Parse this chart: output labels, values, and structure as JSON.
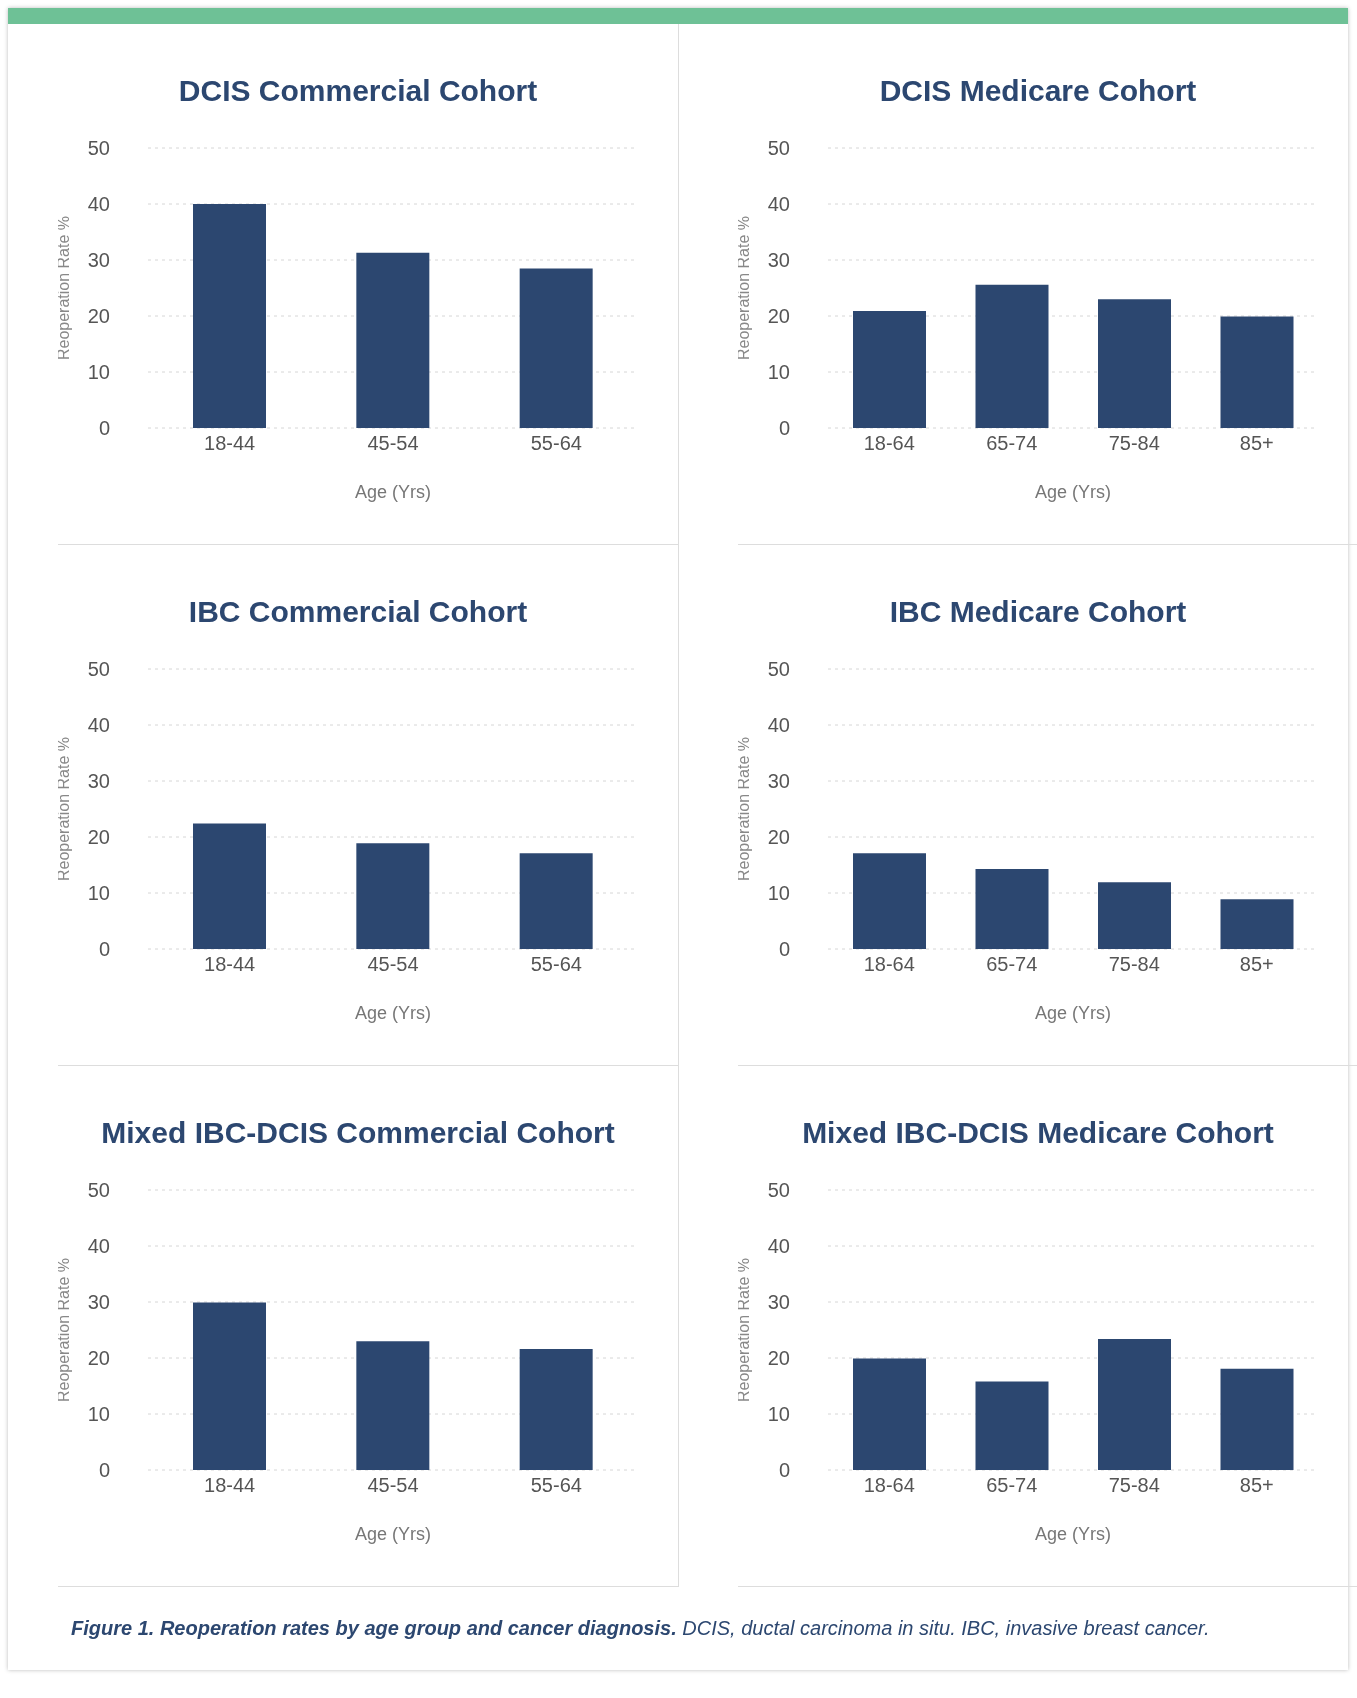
{
  "chart_data": [
    {
      "type": "bar",
      "title": "DCIS Commercial Cohort",
      "xlabel": "Age (Yrs)",
      "ylabel": "Reoperation Rate %",
      "categories": [
        "18-44",
        "45-54",
        "55-64"
      ],
      "values": [
        40.0,
        31.3,
        28.5
      ],
      "color": "#2c4770",
      "ylim": [
        0,
        50
      ],
      "yticks": [
        0,
        10,
        20,
        30,
        40,
        50
      ],
      "grid": "y"
    },
    {
      "type": "bar",
      "title": "DCIS Medicare Cohort",
      "xlabel": "Age (Yrs)",
      "ylabel": "Reoperation Rate %",
      "categories": [
        "18-64",
        "65-74",
        "75-84",
        "85+"
      ],
      "values": [
        20.9,
        25.6,
        23.0,
        19.9
      ],
      "color": "#2c4770",
      "ylim": [
        0,
        50
      ],
      "yticks": [
        0,
        10,
        20,
        30,
        40,
        50
      ],
      "grid": "y"
    },
    {
      "type": "bar",
      "title": "IBC Commercial Cohort",
      "xlabel": "Age (Yrs)",
      "ylabel": "Reoperation Rate %",
      "categories": [
        "18-44",
        "45-54",
        "55-64"
      ],
      "values": [
        22.4,
        18.9,
        17.1
      ],
      "color": "#2c4770",
      "ylim": [
        0,
        50
      ],
      "yticks": [
        0,
        10,
        20,
        30,
        40,
        50
      ],
      "grid": "y"
    },
    {
      "type": "bar",
      "title": "IBC Medicare Cohort",
      "xlabel": "Age (Yrs)",
      "ylabel": "Reoperation Rate %",
      "categories": [
        "18-64",
        "65-74",
        "75-84",
        "85+"
      ],
      "values": [
        17.1,
        14.3,
        11.9,
        8.9
      ],
      "color": "#2c4770",
      "ylim": [
        0,
        50
      ],
      "yticks": [
        0,
        10,
        20,
        30,
        40,
        50
      ],
      "grid": "y"
    },
    {
      "type": "bar",
      "title": "Mixed IBC-DCIS Commercial Cohort",
      "xlabel": "Age (Yrs)",
      "ylabel": "Reoperation Rate %",
      "categories": [
        "18-44",
        "45-54",
        "55-64"
      ],
      "values": [
        29.9,
        23.0,
        21.6
      ],
      "color": "#2c4770",
      "ylim": [
        0,
        50
      ],
      "yticks": [
        0,
        10,
        20,
        30,
        40,
        50
      ],
      "grid": "y"
    },
    {
      "type": "bar",
      "title": "Mixed IBC-DCIS Medicare Cohort",
      "xlabel": "Age (Yrs)",
      "ylabel": "Reoperation Rate %",
      "categories": [
        "18-64",
        "65-74",
        "75-84",
        "85+"
      ],
      "values": [
        19.9,
        15.8,
        23.4,
        18.1
      ],
      "color": "#2c4770",
      "ylim": [
        0,
        50
      ],
      "yticks": [
        0,
        10,
        20,
        30,
        40,
        50
      ],
      "grid": "y",
      "annotations": [
        "Figure 1. Reoperation rates by age group and cancer diagnosis.",
        "DCIS, ductal carcinoma in situ. IBC, invasive breast cancer."
      ]
    }
  ]
}
